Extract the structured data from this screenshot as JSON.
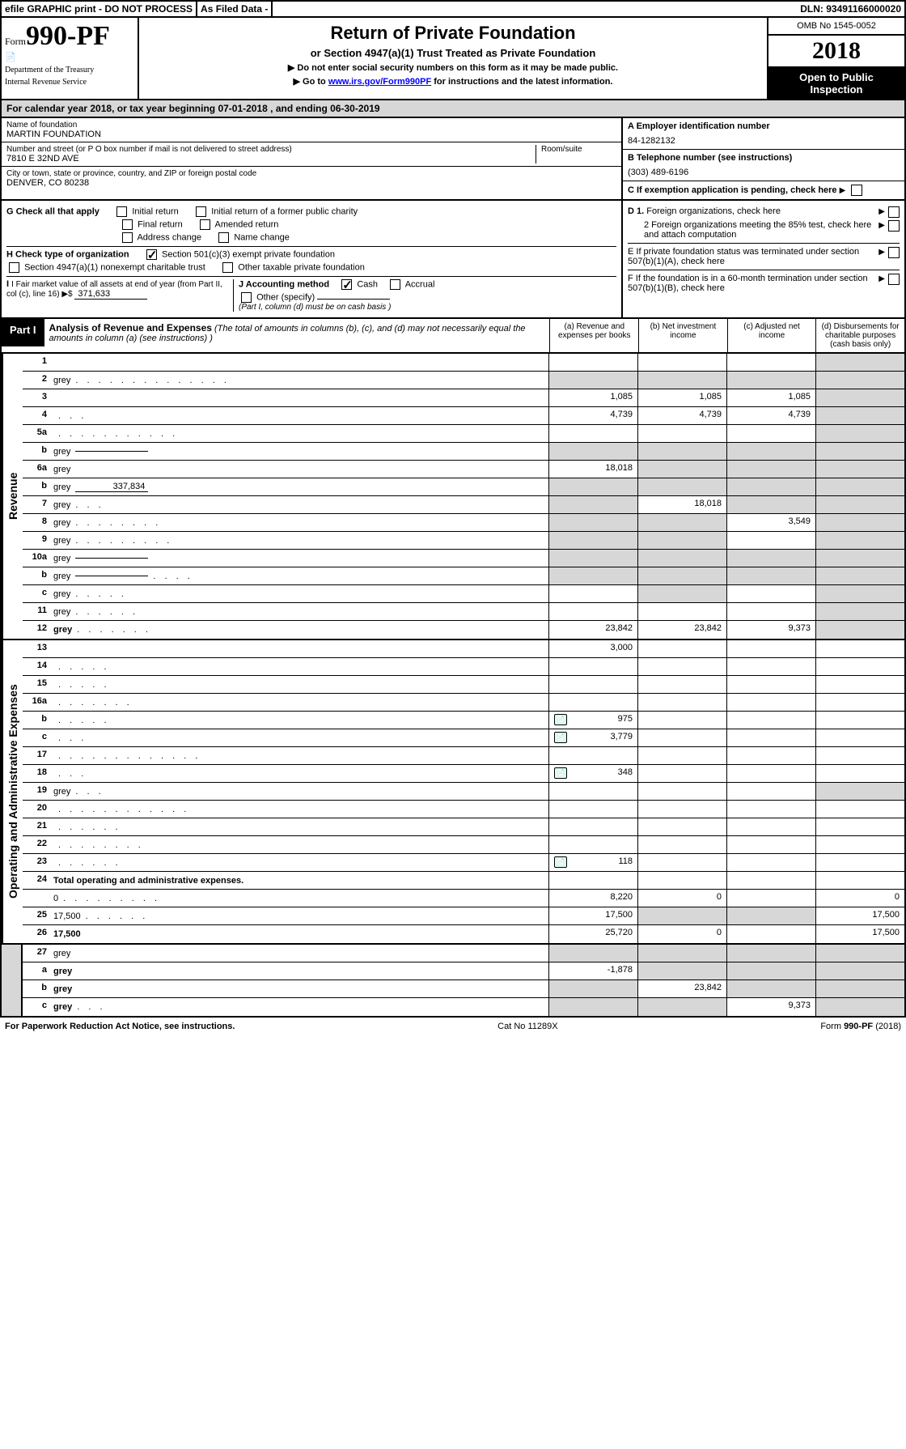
{
  "topbar": {
    "efile": "efile GRAPHIC print - DO NOT PROCESS",
    "asfiled": "As Filed Data -",
    "dln": "DLN: 93491166000020"
  },
  "header": {
    "form_small": "Form",
    "form_big": "990-PF",
    "dept1": "Department of the Treasury",
    "dept2": "Internal Revenue Service",
    "title": "Return of Private Foundation",
    "subtitle": "or Section 4947(a)(1) Trust Treated as Private Foundation",
    "note1": "▶ Do not enter social security numbers on this form as it may be made public.",
    "note2_pre": "▶ Go to ",
    "note2_link": "www.irs.gov/Form990PF",
    "note2_post": " for instructions and the latest information.",
    "omb": "OMB No 1545-0052",
    "year": "2018",
    "open": "Open to Public Inspection"
  },
  "cal": "For calendar year 2018, or tax year beginning 07-01-2018             , and ending 06-30-2019",
  "info": {
    "name_lbl": "Name of foundation",
    "name_val": "MARTIN FOUNDATION",
    "addr_lbl": "Number and street (or P O  box number if mail is not delivered to street address)",
    "addr_val": "7810 E 32ND AVE",
    "room_lbl": "Room/suite",
    "city_lbl": "City or town, state or province, country, and ZIP or foreign postal code",
    "city_val": "DENVER, CO  80238",
    "a_lbl": "A Employer identification number",
    "a_val": "84-1282132",
    "b_lbl": "B Telephone number (see instructions)",
    "b_val": "(303) 489-6196",
    "c_lbl": "C If exemption application is pending, check here"
  },
  "g": {
    "g_lbl": "G Check all that apply",
    "g1": "Initial return",
    "g2": "Initial return of a former public charity",
    "g3": "Final return",
    "g4": "Amended return",
    "g5": "Address change",
    "g6": "Name change",
    "h_lbl": "H Check type of organization",
    "h1": "Section 501(c)(3) exempt private foundation",
    "h2": "Section 4947(a)(1) nonexempt charitable trust",
    "h3": "Other taxable private foundation",
    "i_lbl": "I Fair market value of all assets at end of year (from Part II, col  (c), line 16) ▶$ ",
    "i_val": "371,633",
    "j_lbl": "J Accounting method",
    "j1": "Cash",
    "j2": "Accrual",
    "j3": "Other (specify)",
    "j_note": "(Part I, column (d) must be on cash basis )"
  },
  "right": {
    "d1": "D 1. Foreign organizations, check here",
    "d2": "2  Foreign organizations meeting the 85% test, check here and attach computation",
    "e": "E  If private foundation status was terminated under section 507(b)(1)(A), check here",
    "f": "F  If the foundation is in a 60-month termination under section 507(b)(1)(B), check here"
  },
  "part1": {
    "part_lbl": "Part I",
    "title": "Analysis of Revenue and Expenses",
    "title_note": " (The total of amounts in columns (b), (c), and (d) may not necessarily equal the amounts in column (a) (see instructions) )",
    "col_a": "(a)   Revenue and expenses per books",
    "col_b": "(b)  Net investment income",
    "col_c": "(c)  Adjusted net income",
    "col_d": "(d)  Disbursements for charitable purposes (cash basis only)"
  },
  "sect_rev": "Revenue",
  "sect_exp": "Operating and Administrative Expenses",
  "rows": [
    {
      "n": "1",
      "d": "",
      "a": "",
      "b": "",
      "c": "",
      "d_grey": true
    },
    {
      "n": "2",
      "d": "grey",
      "dots": ". . . . . . . . . . . . . .",
      "a": "",
      "b": "grey",
      "c": "grey",
      "all_grey": true
    },
    {
      "n": "3",
      "d": "",
      "a": "1,085",
      "b": "1,085",
      "c": "1,085",
      "d_grey": true
    },
    {
      "n": "4",
      "d": "",
      "dots": ". . .",
      "a": "4,739",
      "b": "4,739",
      "c": "4,739",
      "d_grey": true
    },
    {
      "n": "5a",
      "d": "",
      "dots": ". . . . . . . . . . .",
      "a": "",
      "b": "",
      "c": "",
      "d_grey": true
    },
    {
      "n": "b",
      "d": "grey",
      "inline_box": true,
      "a": "grey",
      "b": "grey",
      "c": "grey",
      "all_grey": true
    },
    {
      "n": "6a",
      "d": "grey",
      "a": "18,018",
      "b": "grey",
      "c": "grey",
      "bcd_grey": true
    },
    {
      "n": "b",
      "d": "grey",
      "inline_val": "337,834",
      "a": "grey",
      "b": "grey",
      "c": "grey",
      "all_grey": true
    },
    {
      "n": "7",
      "d": "grey",
      "dots": ". . .",
      "a": "grey",
      "b": "18,018",
      "c": "grey",
      "a_grey": true,
      "c_grey": true,
      "d_grey": true
    },
    {
      "n": "8",
      "d": "grey",
      "dots": ". . . . . . . .",
      "a": "grey",
      "b": "grey",
      "c": "3,549",
      "a_grey": true,
      "b_grey": true,
      "d_grey": true
    },
    {
      "n": "9",
      "d": "grey",
      "dots": ". . . . . . . . .",
      "a": "grey",
      "b": "grey",
      "c": "",
      "a_grey": true,
      "b_grey": true,
      "d_grey": true
    },
    {
      "n": "10a",
      "d": "grey",
      "inline_box": true,
      "a": "grey",
      "b": "grey",
      "c": "grey",
      "all_grey": true
    },
    {
      "n": "b",
      "d": "grey",
      "dots": ". . . .",
      "inline_box": true,
      "a": "grey",
      "b": "grey",
      "c": "grey",
      "all_grey": true
    },
    {
      "n": "c",
      "d": "grey",
      "dots": ". . . . .",
      "a": "",
      "b": "grey",
      "c": "",
      "b_grey": true,
      "d_grey": true
    },
    {
      "n": "11",
      "d": "grey",
      "dots": ". . . . . .",
      "a": "",
      "b": "",
      "c": "",
      "d_grey": true
    },
    {
      "n": "12",
      "d": "grey",
      "dots": ". . . . . . .",
      "bold": true,
      "a": "23,842",
      "b": "23,842",
      "c": "9,373",
      "d_grey": true
    }
  ],
  "rows_exp": [
    {
      "n": "13",
      "d": "",
      "a": "3,000",
      "b": "",
      "c": ""
    },
    {
      "n": "14",
      "d": "",
      "dots": ". . . . .",
      "a": "",
      "b": "",
      "c": ""
    },
    {
      "n": "15",
      "d": "",
      "dots": ". . . . .",
      "a": "",
      "b": "",
      "c": ""
    },
    {
      "n": "16a",
      "d": "",
      "dots": ". . . . . . .",
      "a": "",
      "b": "",
      "c": ""
    },
    {
      "n": "b",
      "d": "",
      "dots": ". . . . .",
      "link": true,
      "a": "975",
      "b": "",
      "c": ""
    },
    {
      "n": "c",
      "d": "",
      "dots": ". . .",
      "link": true,
      "a": "3,779",
      "b": "",
      "c": ""
    },
    {
      "n": "17",
      "d": "",
      "dots": ". . . . . . . . . . . . .",
      "a": "",
      "b": "",
      "c": ""
    },
    {
      "n": "18",
      "d": "",
      "dots": ". . .",
      "link": true,
      "a": "348",
      "b": "",
      "c": ""
    },
    {
      "n": "19",
      "d": "grey",
      "dots": ". . .",
      "a": "",
      "b": "",
      "c": "",
      "d_grey": true
    },
    {
      "n": "20",
      "d": "",
      "dots": ". . . . . . . . . . . .",
      "a": "",
      "b": "",
      "c": ""
    },
    {
      "n": "21",
      "d": "",
      "dots": ". . . . . .",
      "a": "",
      "b": "",
      "c": ""
    },
    {
      "n": "22",
      "d": "",
      "dots": ". . . . . . . .",
      "a": "",
      "b": "",
      "c": ""
    },
    {
      "n": "23",
      "d": "",
      "dots": ". . . . . .",
      "link": true,
      "a": "118",
      "b": "",
      "c": ""
    },
    {
      "n": "24",
      "d": "Total operating and administrative expenses.",
      "bold": true,
      "nocells": true
    },
    {
      "n": "",
      "d": "0",
      "dots": ". . . . . . . . .",
      "a": "8,220",
      "b": "0",
      "c": ""
    },
    {
      "n": "25",
      "d": "17,500",
      "dots": ". . . . . .",
      "a": "17,500",
      "b": "grey",
      "c": "grey",
      "b_grey": true,
      "c_grey": true
    },
    {
      "n": "26",
      "d": "17,500",
      "bold": true,
      "a": "25,720",
      "b": "0",
      "c": ""
    }
  ],
  "rows_bot": [
    {
      "n": "27",
      "d": "grey",
      "a": "grey",
      "b": "grey",
      "c": "grey",
      "all_grey": true
    },
    {
      "n": "a",
      "d": "grey",
      "bold": true,
      "a": "-1,878",
      "b": "grey",
      "c": "grey",
      "bcd_grey": true
    },
    {
      "n": "b",
      "d": "grey",
      "bold": true,
      "a": "grey",
      "b": "23,842",
      "c": "grey",
      "a_grey": true,
      "c_grey": true,
      "d_grey": true
    },
    {
      "n": "c",
      "d": "grey",
      "dots": ". . .",
      "bold": true,
      "a": "grey",
      "b": "grey",
      "c": "9,373",
      "a_grey": true,
      "b_grey": true,
      "d_grey": true
    }
  ],
  "footer": {
    "l": "For Paperwork Reduction Act Notice, see instructions.",
    "c": "Cat  No  11289X",
    "r": "Form 990-PF (2018)"
  }
}
